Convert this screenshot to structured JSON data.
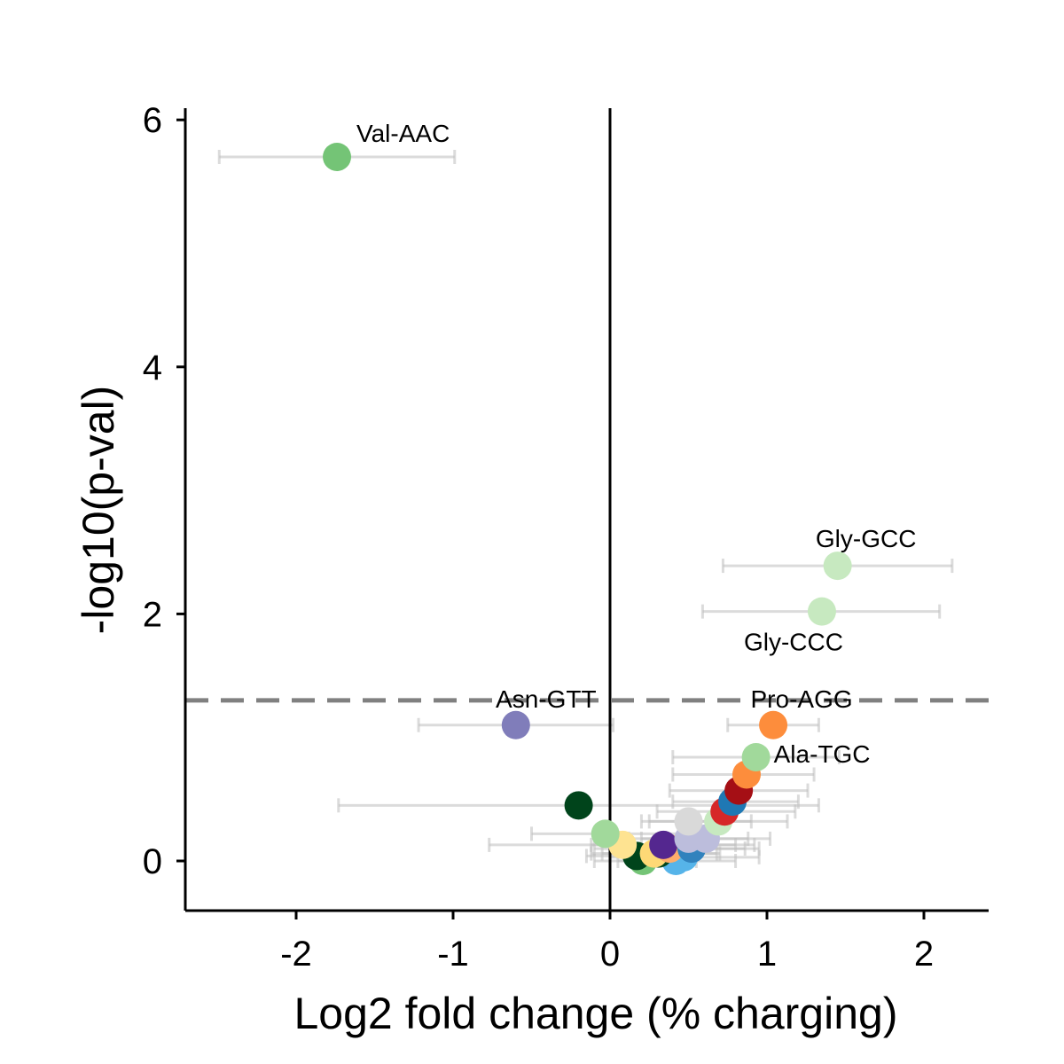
{
  "chart_data": {
    "type": "scatter",
    "title": "",
    "xlabel": "Log2 fold change (% charging)",
    "ylabel": "-log10(p-val)",
    "xlim": [
      -2.7,
      2.4
    ],
    "ylim": [
      -0.4,
      6.1
    ],
    "x_ticks": [
      -2,
      -1,
      0,
      1,
      2
    ],
    "y_ticks": [
      0,
      2,
      4,
      6
    ],
    "x_tick_labels": [
      "-2",
      "-1",
      "0",
      "1",
      "2"
    ],
    "y_tick_labels": [
      "0",
      "2",
      "4",
      "6"
    ],
    "threshold_y": 1.3,
    "reference_x": 0,
    "grid": false,
    "legend": "none",
    "points": [
      {
        "label": "Val-AAC",
        "x": -1.74,
        "y": 5.7,
        "xmin": -2.49,
        "xmax": -0.99,
        "color": "#74c476"
      },
      {
        "label": "Gly-GCC",
        "x": 1.45,
        "y": 2.39,
        "xmin": 0.72,
        "xmax": 2.18,
        "color": "#c7e9c0"
      },
      {
        "label": "Gly-CCC",
        "x": 1.35,
        "y": 2.02,
        "xmin": 0.59,
        "xmax": 2.1,
        "color": "#c7e9c0"
      },
      {
        "label": "Asn-GTT",
        "x": -0.6,
        "y": 1.1,
        "xmin": -1.22,
        "xmax": 0.02,
        "color": "#807dba"
      },
      {
        "label": "Pro-AGG",
        "x": 1.04,
        "y": 1.1,
        "xmin": 0.75,
        "xmax": 1.33,
        "color": "#fd8d3c"
      },
      {
        "label": "Ala-TGC",
        "x": 0.93,
        "y": 0.84,
        "xmin": 0.4,
        "xmax": 1.46,
        "color": "#a1d99b"
      },
      {
        "label": "",
        "x": 0.87,
        "y": 0.7,
        "xmin": 0.4,
        "xmax": 1.3,
        "color": "#fd8d3c"
      },
      {
        "label": "",
        "x": 0.82,
        "y": 0.57,
        "xmin": 0.38,
        "xmax": 1.26,
        "color": "#a50f15"
      },
      {
        "label": "",
        "x": 0.78,
        "y": 0.48,
        "xmin": 0.4,
        "xmax": 1.2,
        "color": "#1f78b4"
      },
      {
        "label": "",
        "x": 0.73,
        "y": 0.4,
        "xmin": 0.3,
        "xmax": 1.18,
        "color": "#d62728"
      },
      {
        "label": "",
        "x": 0.69,
        "y": 0.32,
        "xmin": 0.25,
        "xmax": 1.13,
        "color": "#c7e9c0"
      },
      {
        "label": "",
        "x": 0.5,
        "y": 0.32,
        "xmin": 0.2,
        "xmax": 0.9,
        "color": "#d9d9d9"
      },
      {
        "label": "",
        "x": -0.2,
        "y": 0.45,
        "xmin": -1.73,
        "xmax": 1.33,
        "color": "#00441b"
      },
      {
        "label": "",
        "x": -0.03,
        "y": 0.22,
        "xmin": -0.5,
        "xmax": 0.45,
        "color": "#a1d99b"
      },
      {
        "label": "",
        "x": 0.08,
        "y": 0.13,
        "xmin": -0.77,
        "xmax": 0.92,
        "color": "#fee391"
      },
      {
        "label": "",
        "x": 0.17,
        "y": 0.04,
        "xmin": -0.15,
        "xmax": 0.5,
        "color": "#00441b"
      },
      {
        "label": "",
        "x": 0.21,
        "y": 0.0,
        "xmin": -0.1,
        "xmax": 0.55,
        "color": "#74c476"
      },
      {
        "label": "",
        "x": 0.31,
        "y": 0.06,
        "xmin": -0.05,
        "xmax": 0.7,
        "color": "#00441b"
      },
      {
        "label": "",
        "x": 0.34,
        "y": 0.13,
        "xmin": -0.12,
        "xmax": 0.8,
        "color": "#54278f"
      },
      {
        "label": "",
        "x": 0.38,
        "y": 0.1,
        "xmin": -0.1,
        "xmax": 0.86,
        "color": "#fdae6b"
      },
      {
        "label": "",
        "x": 0.42,
        "y": 0.0,
        "xmin": 0.05,
        "xmax": 0.8,
        "color": "#56b4e9"
      },
      {
        "label": "",
        "x": 0.47,
        "y": 0.03,
        "xmin": 0.0,
        "xmax": 0.95,
        "color": "#56b4e9"
      },
      {
        "label": "",
        "x": 0.52,
        "y": 0.1,
        "xmin": 0.1,
        "xmax": 0.95,
        "color": "#3182bd"
      },
      {
        "label": "",
        "x": 0.5,
        "y": 0.18,
        "xmin": 0.12,
        "xmax": 0.88,
        "color": "#bcbddc"
      },
      {
        "label": "",
        "x": 0.61,
        "y": 0.18,
        "xmin": 0.2,
        "xmax": 1.02,
        "color": "#bcbddc"
      },
      {
        "label": "",
        "x": 0.28,
        "y": 0.06,
        "xmin": -0.12,
        "xmax": 0.68,
        "color": "#fed976"
      }
    ]
  }
}
